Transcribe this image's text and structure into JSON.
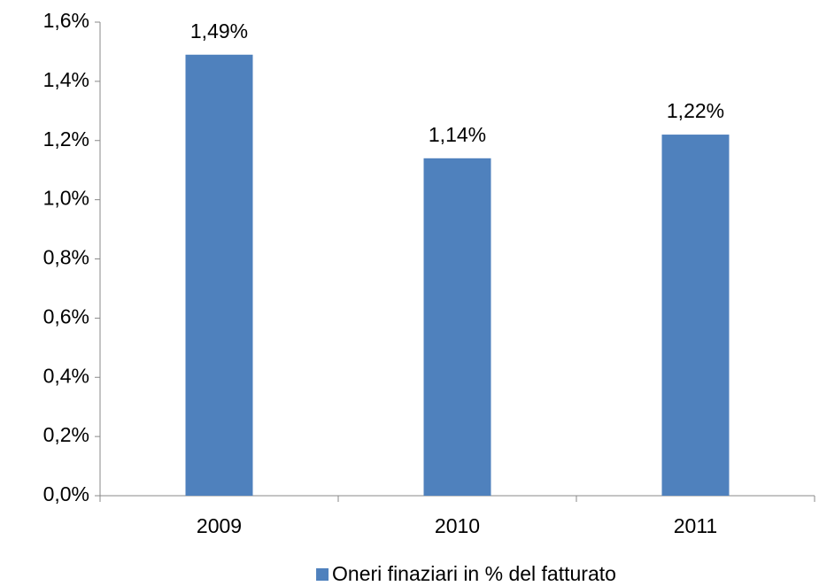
{
  "chart_data": {
    "type": "bar",
    "categories": [
      "2009",
      "2010",
      "2011"
    ],
    "series": [
      {
        "name": "Oneri finaziari in % del fatturato",
        "color": "#4f81bd",
        "values": [
          1.49,
          1.14,
          1.22
        ],
        "value_labels": [
          "1,49%",
          "1,14%",
          "1,22%"
        ]
      }
    ],
    "ylim": [
      0,
      1.6
    ],
    "yticks": [
      {
        "value": 0,
        "label": "0,0%"
      },
      {
        "value": 0.2,
        "label": "0,2%"
      },
      {
        "value": 0.4,
        "label": "0,4%"
      },
      {
        "value": 0.6,
        "label": "0,6%"
      },
      {
        "value": 0.8,
        "label": "0,8%"
      },
      {
        "value": 1.0,
        "label": "1,0%"
      },
      {
        "value": 1.2,
        "label": "1,2%"
      },
      {
        "value": 1.4,
        "label": "1,4%"
      },
      {
        "value": 1.6,
        "label": "1,6%"
      }
    ],
    "legend": "bottom"
  }
}
